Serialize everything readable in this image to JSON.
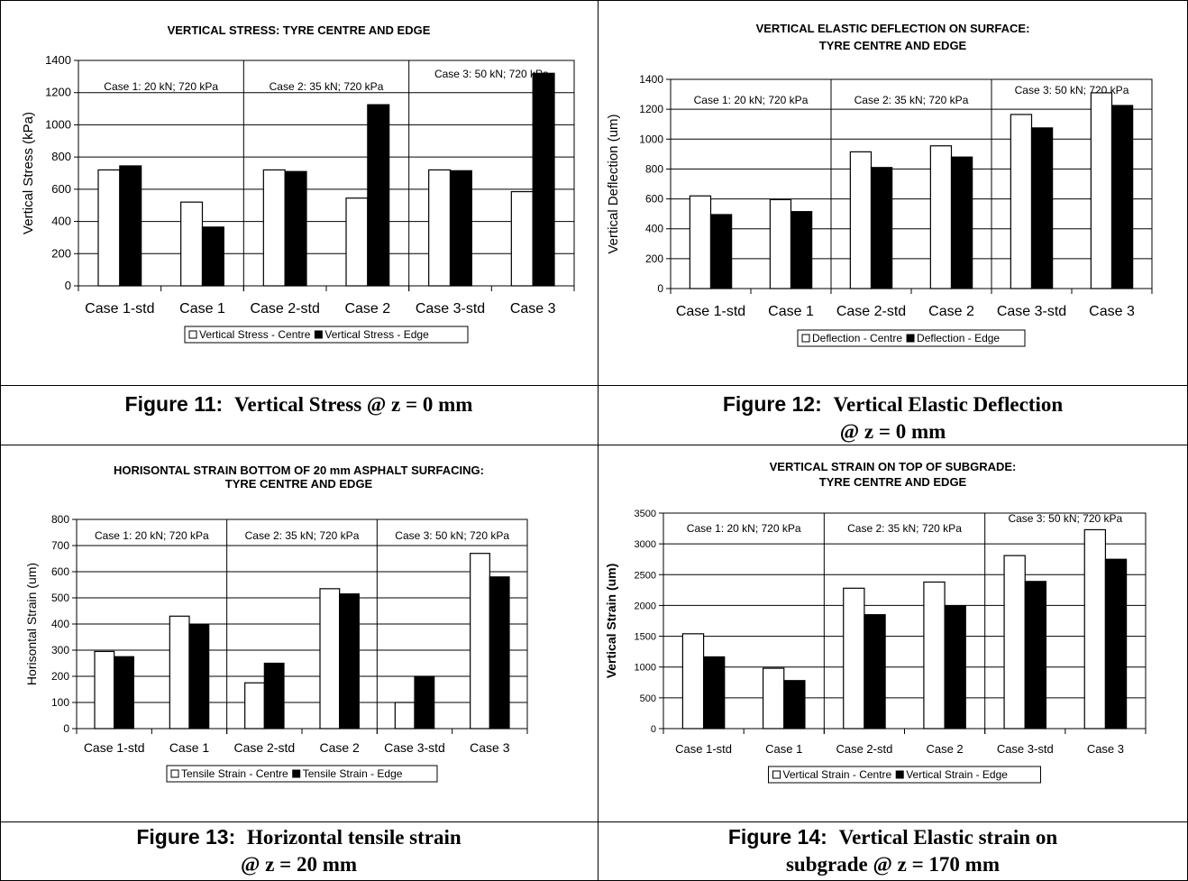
{
  "charts": [
    {
      "title_lines": [
        "VERTICAL STRESS: TYRE CENTRE AND EDGE"
      ],
      "ylabel": "Vertical Stress (kPa)",
      "legend": [
        "Vertical Stress - Centre",
        "Vertical Stress - Edge"
      ],
      "case_notes": [
        "Case 1:  20 kN; 720 kPa",
        "Case 2:  35 kN; 720 kPa",
        "Case 3:  50 kN; 720 kPa"
      ],
      "caption_label": "Figure 11:",
      "caption_text": "Vertical Stress @ z = 0 mm",
      "caption_line2": ""
    },
    {
      "title_lines": [
        "VERTICAL ELASTIC DEFLECTION ON SURFACE:",
        "TYRE CENTRE AND EDGE"
      ],
      "ylabel": "Vertical Deflection (um)",
      "legend": [
        "Deflection - Centre",
        "Deflection - Edge"
      ],
      "case_notes": [
        "Case 1:  20 kN; 720 kPa",
        "Case 2:  35 kN; 720 kPa",
        "Case 3:  50 kN; 720 kPa"
      ],
      "caption_label": "Figure 12:",
      "caption_text": "Vertical Elastic Deflection",
      "caption_line2": "@ z = 0 mm"
    },
    {
      "title_lines": [
        "HORISONTAL STRAIN BOTTOM OF 20 mm ASPHALT SURFACING:",
        "TYRE CENTRE AND EDGE"
      ],
      "ylabel": "Horisontal Strain (um)",
      "legend": [
        "Tensile Strain - Centre",
        "Tensile Strain - Edge"
      ],
      "case_notes": [
        "Case 1:  20 kN; 720 kPa",
        "Case 2:  35 kN; 720 kPa",
        "Case 3:  50 kN; 720 kPa"
      ],
      "caption_label": "Figure 13:",
      "caption_text": "Horizontal tensile strain",
      "caption_line2": "@ z = 20 mm"
    },
    {
      "title_lines": [
        "VERTICAL STRAIN ON TOP OF SUBGRADE:",
        "TYRE CENTRE AND EDGE"
      ],
      "ylabel": "Vertical Strain (um)",
      "legend": [
        "Vertical Strain - Centre",
        "Vertical Strain - Edge"
      ],
      "case_notes": [
        "Case 1:  20 kN; 720 kPa",
        "Case 2:  35 kN; 720 kPa",
        "Case 3:  50 kN; 720 kPa"
      ],
      "caption_label": "Figure 14:",
      "caption_text": "Vertical Elastic strain on",
      "caption_line2": "subgrade @ z = 170 mm"
    }
  ],
  "chart_data": [
    {
      "type": "bar",
      "title": "VERTICAL STRESS: TYRE CENTRE AND EDGE",
      "ylabel": "Vertical Stress (kPa)",
      "xlabel": "",
      "categories": [
        "Case 1-std",
        "Case 1",
        "Case 2-std",
        "Case 2",
        "Case 3-std",
        "Case 3"
      ],
      "series": [
        {
          "name": "Vertical Stress - Centre",
          "color": "#ffffff",
          "values": [
            720,
            520,
            720,
            545,
            720,
            585
          ]
        },
        {
          "name": "Vertical Stress - Edge",
          "color": "#000000",
          "values": [
            745,
            365,
            710,
            1125,
            715,
            1320
          ]
        }
      ],
      "ylim": [
        0,
        1400
      ],
      "yticks": [
        0,
        200,
        400,
        600,
        800,
        1000,
        1200,
        1400
      ],
      "grid": true,
      "legend_position": "bottom"
    },
    {
      "type": "bar",
      "title": "VERTICAL ELASTIC DEFLECTION ON SURFACE: TYRE CENTRE AND EDGE",
      "ylabel": "Vertical Deflection (um)",
      "xlabel": "",
      "categories": [
        "Case 1-std",
        "Case 1",
        "Case 2-std",
        "Case 2",
        "Case 3-std",
        "Case 3"
      ],
      "series": [
        {
          "name": "Deflection - Centre",
          "color": "#ffffff",
          "values": [
            620,
            595,
            915,
            955,
            1165,
            1310
          ]
        },
        {
          "name": "Deflection - Edge",
          "color": "#000000",
          "values": [
            495,
            515,
            810,
            880,
            1075,
            1225
          ]
        }
      ],
      "ylim": [
        0,
        1400
      ],
      "yticks": [
        0,
        200,
        400,
        600,
        800,
        1000,
        1200,
        1400
      ],
      "grid": true,
      "legend_position": "bottom"
    },
    {
      "type": "bar",
      "title": "HORISONTAL STRAIN BOTTOM OF 20 mm ASPHALT SURFACING: TYRE CENTRE AND EDGE",
      "ylabel": "Horisontal Strain (um)",
      "xlabel": "",
      "categories": [
        "Case 1-std",
        "Case 1",
        "Case 2-std",
        "Case 2",
        "Case 3-std",
        "Case 3"
      ],
      "series": [
        {
          "name": "Tensile Strain - Centre",
          "color": "#ffffff",
          "values": [
            295,
            430,
            175,
            535,
            100,
            670
          ]
        },
        {
          "name": "Tensile Strain - Edge",
          "color": "#000000",
          "values": [
            275,
            398,
            250,
            515,
            200,
            580
          ]
        }
      ],
      "ylim": [
        0,
        800
      ],
      "yticks": [
        0,
        100,
        200,
        300,
        400,
        500,
        600,
        700,
        800
      ],
      "grid": true,
      "legend_position": "bottom"
    },
    {
      "type": "bar",
      "title": "VERTICAL STRAIN ON TOP OF SUBGRADE: TYRE CENTRE AND EDGE",
      "ylabel": "Vertical Strain (um)",
      "xlabel": "",
      "categories": [
        "Case 1-std",
        "Case 1",
        "Case 2-std",
        "Case 2",
        "Case 3-std",
        "Case 3"
      ],
      "series": [
        {
          "name": "Vertical Strain - Centre",
          "color": "#ffffff",
          "values": [
            1540,
            980,
            2280,
            2380,
            2810,
            3230
          ]
        },
        {
          "name": "Vertical Strain - Edge",
          "color": "#000000",
          "values": [
            1165,
            780,
            1850,
            1990,
            2390,
            2750
          ]
        }
      ],
      "ylim": [
        0,
        3500
      ],
      "yticks": [
        0,
        500,
        1000,
        1500,
        2000,
        2500,
        3000,
        3500
      ],
      "grid": true,
      "legend_position": "bottom"
    }
  ]
}
